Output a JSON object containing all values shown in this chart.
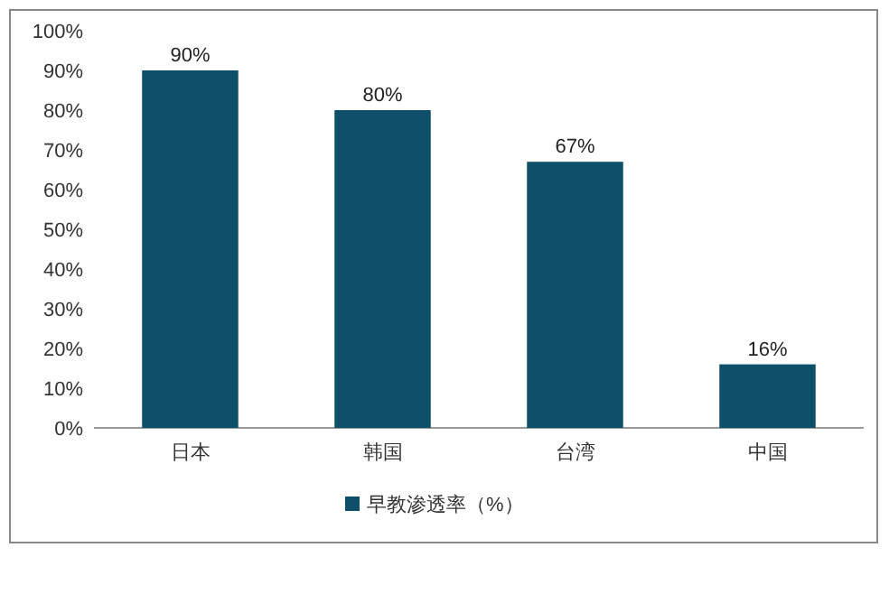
{
  "chart_data": {
    "type": "bar",
    "categories": [
      "日本",
      "韩国",
      "台湾",
      "中国"
    ],
    "series": [
      {
        "name": "早教渗透率（%）",
        "color": "#0e4f6a",
        "values": [
          90,
          80,
          67,
          16
        ],
        "value_labels": [
          "90%",
          "80%",
          "67%",
          "16%"
        ]
      }
    ],
    "ylim": [
      0,
      100
    ],
    "yticks": [
      {
        "value": 0,
        "label": "0%"
      },
      {
        "value": 10,
        "label": "10%"
      },
      {
        "value": 20,
        "label": "20%"
      },
      {
        "value": 30,
        "label": "30%"
      },
      {
        "value": 40,
        "label": "40%"
      },
      {
        "value": 50,
        "label": "50%"
      },
      {
        "value": 60,
        "label": "60%"
      },
      {
        "value": 70,
        "label": "70%"
      },
      {
        "value": 80,
        "label": "80%"
      },
      {
        "value": 90,
        "label": "90%"
      },
      {
        "value": 100,
        "label": "100%"
      }
    ],
    "legend": "bottom"
  }
}
